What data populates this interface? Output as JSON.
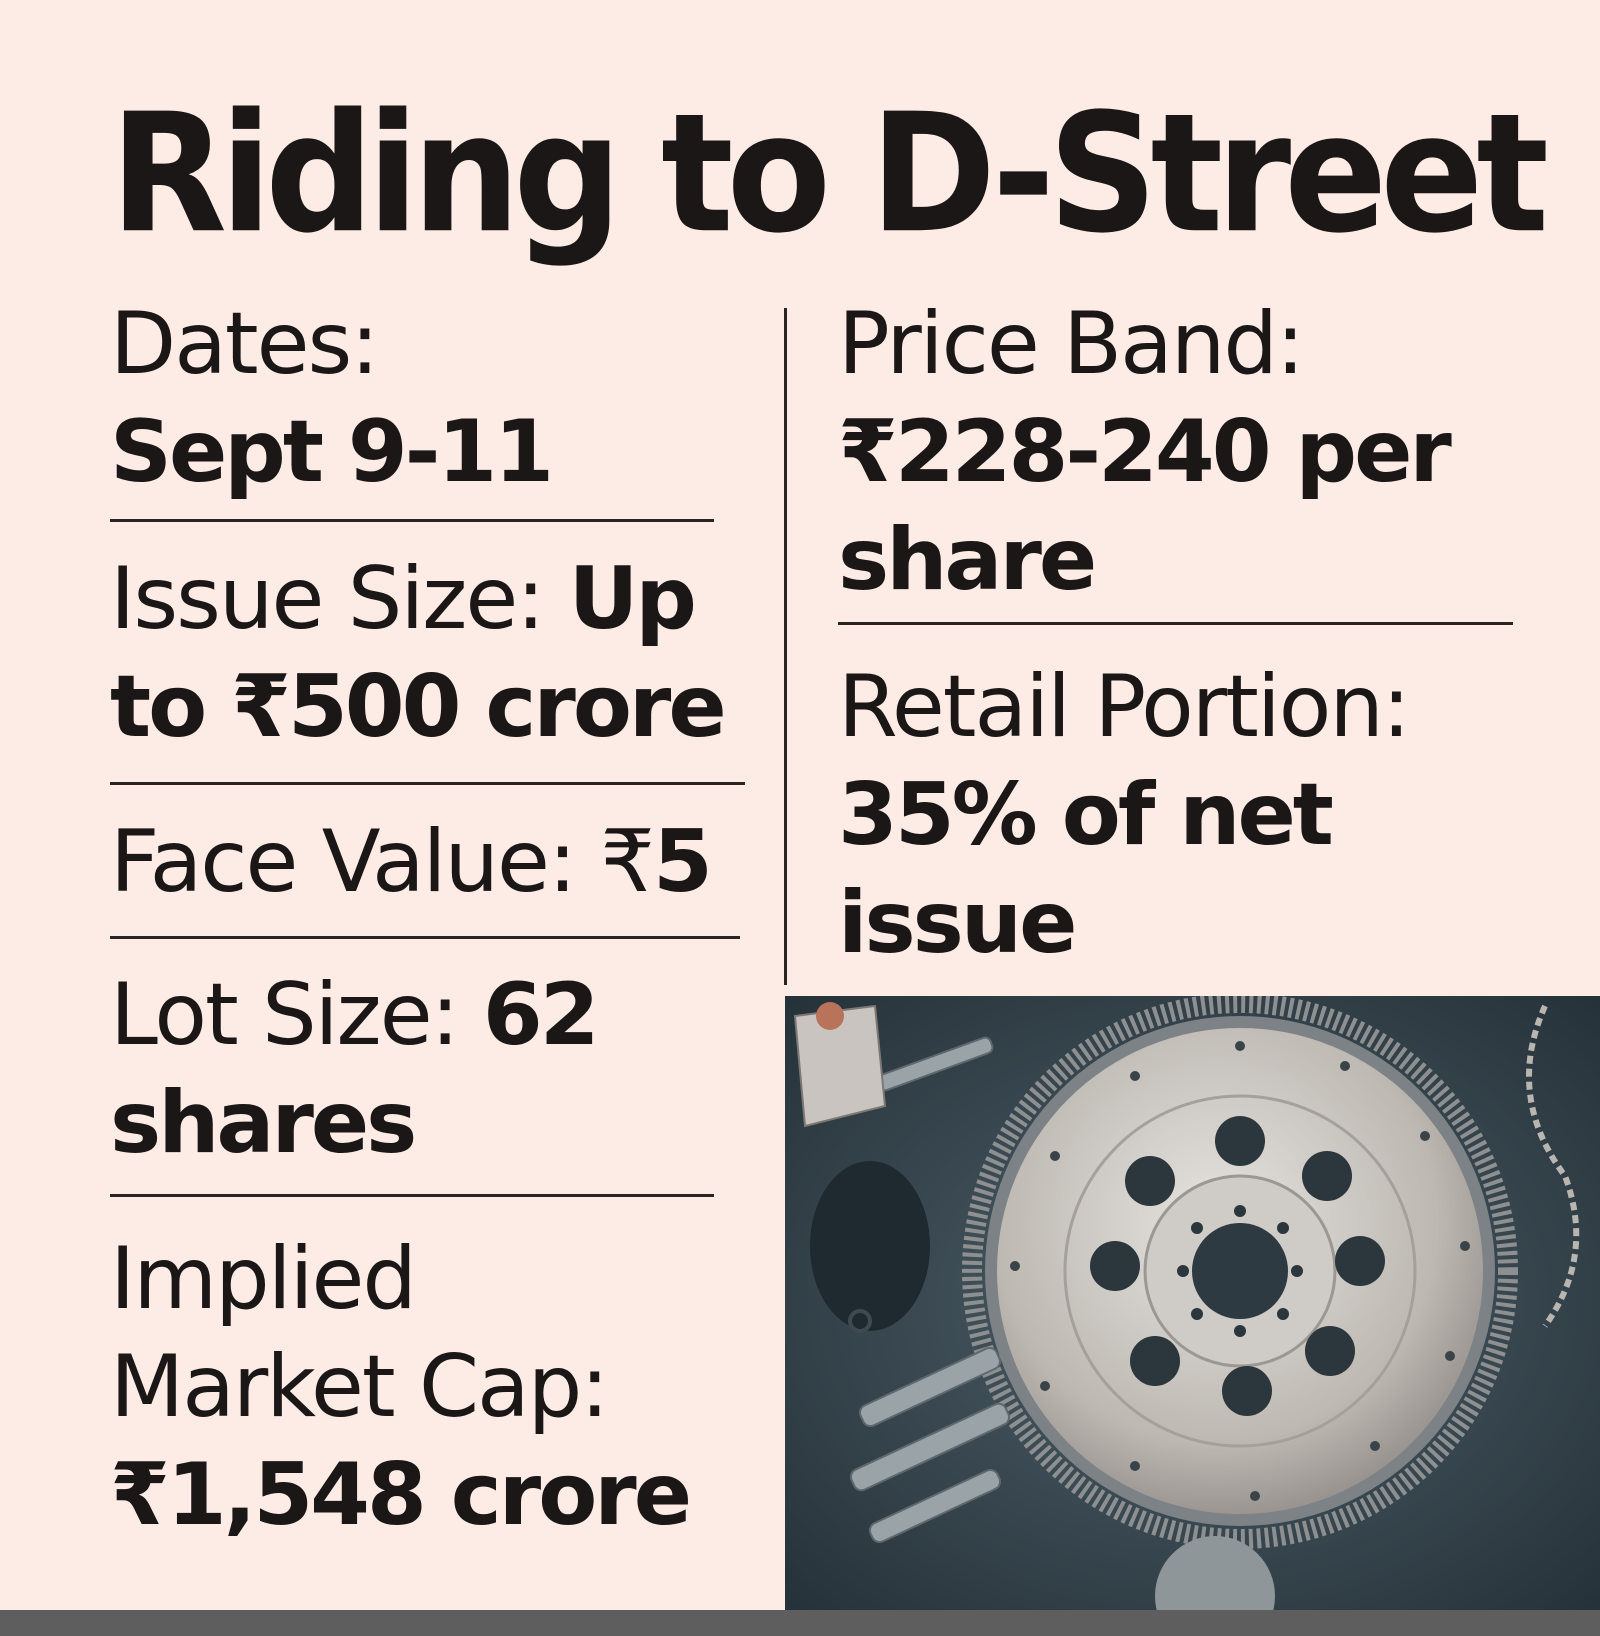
{
  "title": "Riding to D-Street",
  "left_column": [
    {
      "label": "Dates:",
      "value": "Sept 9-11"
    },
    {
      "label": "Issue Size: ",
      "value_line1": "Up",
      "value_line2": "to ₹500 crore"
    },
    {
      "label": "Face Value: ₹",
      "value": "5"
    },
    {
      "label": "Lot Size: ",
      "value_line1": "62",
      "value_line2": "shares"
    },
    {
      "label_line1": "Implied",
      "label_line2": "Market Cap:",
      "value": "₹1,548 crore"
    }
  ],
  "right_column": [
    {
      "label": "Price Band:",
      "value_line1": "₹228-240 per",
      "value_line2": "share"
    },
    {
      "label": "Retail Portion:",
      "value_line1": "35% of net",
      "value_line2": "issue"
    }
  ],
  "image": {
    "subject": "flywheel-and-auto-parts-photo"
  }
}
